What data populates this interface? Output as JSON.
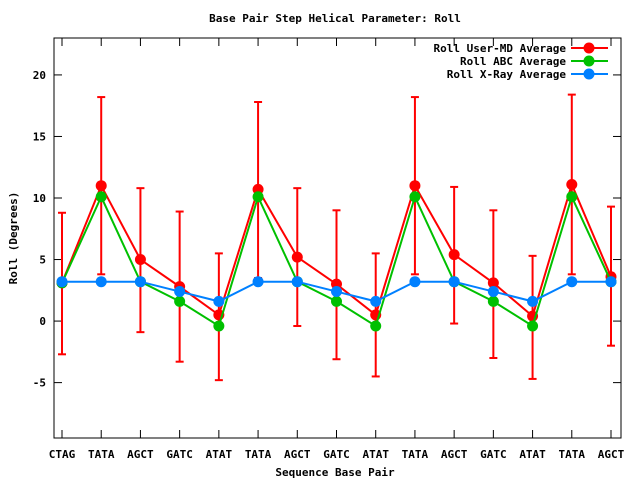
{
  "chart_data": {
    "type": "line",
    "title": "Base Pair Step Helical Parameter: Roll",
    "xlabel": "Sequence Base Pair",
    "ylabel": "Roll (Degrees)",
    "categories": [
      "CTAG",
      "TATA",
      "AGCT",
      "GATC",
      "ATAT",
      "TATA",
      "AGCT",
      "GATC",
      "ATAT",
      "TATA",
      "AGCT",
      "GATC",
      "ATAT",
      "TATA",
      "AGCT"
    ],
    "ylim": [
      -9.5,
      23
    ],
    "yticks": [
      -5,
      0,
      5,
      10,
      15,
      20
    ],
    "ytick_labels": [
      "-5",
      "0",
      "5",
      "10",
      "15",
      "20"
    ],
    "grid": false,
    "legend_position": "top-right",
    "series": [
      {
        "name": "Roll User-MD Average",
        "color": "#ff0000",
        "values": [
          3.1,
          11.0,
          5.0,
          2.8,
          0.5,
          10.7,
          5.2,
          3.0,
          0.5,
          11.0,
          5.4,
          3.1,
          0.4,
          11.1,
          3.6
        ],
        "err_low": [
          -2.7,
          3.8,
          -0.9,
          -3.3,
          -4.8,
          3.5,
          -0.4,
          -3.1,
          -4.5,
          3.8,
          -0.2,
          -3.0,
          -4.7,
          3.8,
          -2.0
        ],
        "err_high": [
          8.8,
          18.2,
          10.8,
          8.9,
          5.5,
          17.8,
          10.8,
          9.0,
          5.5,
          18.2,
          10.9,
          9.0,
          5.3,
          18.4,
          9.3
        ]
      },
      {
        "name": "Roll ABC Average",
        "color": "#00c000",
        "values": [
          3.1,
          10.1,
          3.2,
          1.6,
          -0.4,
          10.1,
          3.2,
          1.6,
          -0.4,
          10.1,
          3.2,
          1.6,
          -0.4,
          10.1,
          3.2
        ]
      },
      {
        "name": "Roll X-Ray Average",
        "color": "#0080ff",
        "values": [
          3.2,
          3.2,
          3.2,
          2.4,
          1.6,
          3.2,
          3.2,
          2.4,
          1.6,
          3.2,
          3.2,
          2.4,
          1.6,
          3.2,
          3.2
        ]
      }
    ]
  }
}
